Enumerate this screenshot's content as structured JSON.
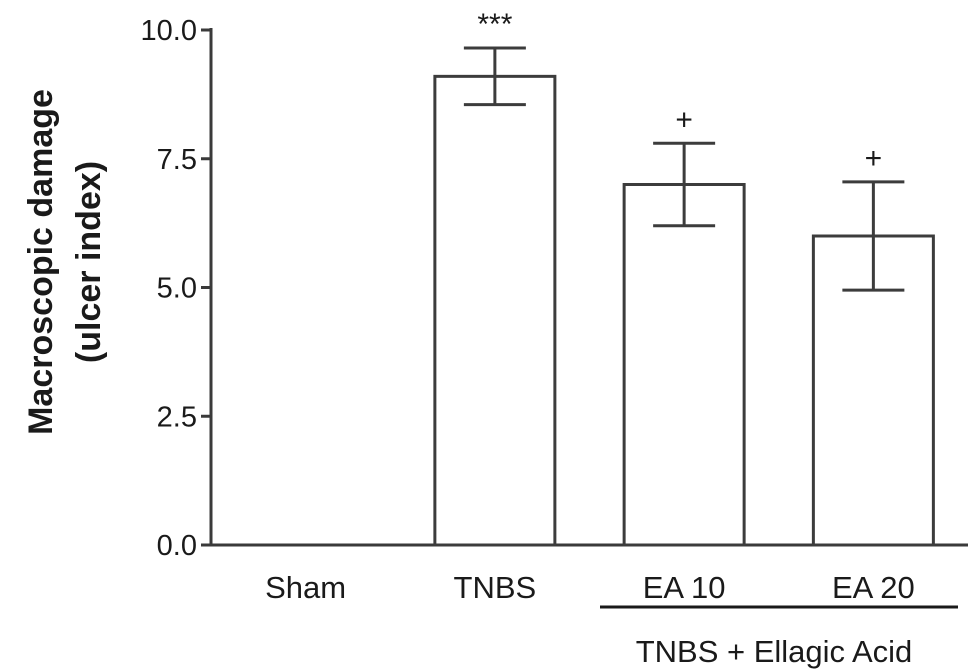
{
  "chart_data": {
    "type": "bar",
    "categories": [
      "Sham",
      "TNBS",
      "EA 10",
      "EA 20"
    ],
    "values": [
      0.0,
      9.1,
      7.0,
      6.0
    ],
    "error": [
      0.0,
      0.55,
      0.8,
      1.05
    ],
    "significance": [
      "",
      "***",
      "+",
      "+"
    ],
    "group_label": "TNBS + Ellagic Acid",
    "group_categories": [
      "EA 10",
      "EA 20"
    ],
    "ylabel_line1": "Macroscopic damage",
    "ylabel_line2": "(ulcer index)",
    "ylim": [
      0,
      10
    ],
    "yticks": [
      "0.0",
      "2.5",
      "5.0",
      "7.5",
      "10.0"
    ],
    "grid": false,
    "bar_fill": "#ffffff",
    "bar_stroke": "#3c3c3c"
  }
}
